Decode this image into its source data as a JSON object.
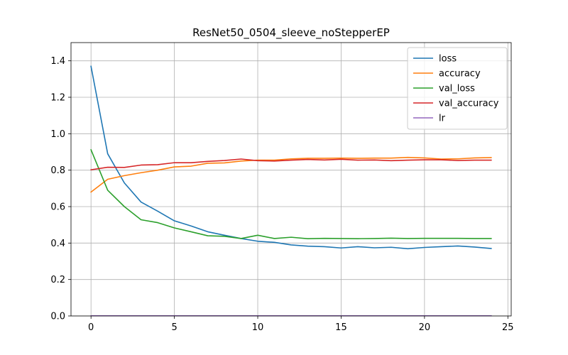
{
  "chart_data": {
    "type": "line",
    "title": "ResNet50_0504_sleeve_noStepperEP",
    "xlabel": "",
    "ylabel": "",
    "xlim": [
      -1.2,
      25.2
    ],
    "ylim": [
      0.0,
      1.5
    ],
    "xticks": [
      0,
      5,
      10,
      15,
      20,
      25
    ],
    "yticks": [
      0.0,
      0.2,
      0.4,
      0.6,
      0.8,
      1.0,
      1.2,
      1.4
    ],
    "grid": true,
    "legend_position": "top-right",
    "x": [
      0,
      1,
      2,
      3,
      4,
      5,
      6,
      7,
      8,
      9,
      10,
      11,
      12,
      13,
      14,
      15,
      16,
      17,
      18,
      19,
      20,
      21,
      22,
      23,
      24
    ],
    "series": [
      {
        "name": "loss",
        "color": "#1f77b4",
        "values": [
          1.37,
          0.89,
          0.73,
          0.625,
          0.575,
          0.522,
          0.494,
          0.462,
          0.443,
          0.425,
          0.41,
          0.404,
          0.39,
          0.383,
          0.38,
          0.373,
          0.38,
          0.374,
          0.377,
          0.369,
          0.376,
          0.38,
          0.384,
          0.378,
          0.37
        ]
      },
      {
        "name": "accuracy",
        "color": "#ff7f0e",
        "values": [
          0.68,
          0.75,
          0.77,
          0.786,
          0.8,
          0.818,
          0.822,
          0.838,
          0.84,
          0.85,
          0.855,
          0.855,
          0.862,
          0.865,
          0.865,
          0.866,
          0.865,
          0.866,
          0.866,
          0.87,
          0.867,
          0.861,
          0.862,
          0.867,
          0.869
        ]
      },
      {
        "name": "val_loss",
        "color": "#2ca02c",
        "values": [
          0.912,
          0.69,
          0.6,
          0.528,
          0.512,
          0.483,
          0.462,
          0.44,
          0.437,
          0.425,
          0.443,
          0.425,
          0.432,
          0.424,
          0.426,
          0.425,
          0.424,
          0.425,
          0.427,
          0.425,
          0.426,
          0.426,
          0.426,
          0.425,
          0.425
        ]
      },
      {
        "name": "val_accuracy",
        "color": "#d62728",
        "values": [
          0.802,
          0.816,
          0.815,
          0.828,
          0.83,
          0.841,
          0.841,
          0.848,
          0.853,
          0.861,
          0.852,
          0.85,
          0.855,
          0.859,
          0.856,
          0.86,
          0.855,
          0.856,
          0.852,
          0.855,
          0.857,
          0.857,
          0.853,
          0.855,
          0.855
        ]
      },
      {
        "name": "lr",
        "color": "#9467bd",
        "values": [
          0.001,
          0.001,
          0.001,
          0.001,
          0.001,
          0.001,
          0.001,
          0.001,
          0.001,
          0.001,
          0.001,
          0.001,
          0.001,
          0.001,
          0.001,
          0.001,
          0.001,
          0.001,
          0.001,
          0.001,
          0.001,
          0.001,
          0.001,
          0.001,
          0.001
        ]
      }
    ]
  }
}
